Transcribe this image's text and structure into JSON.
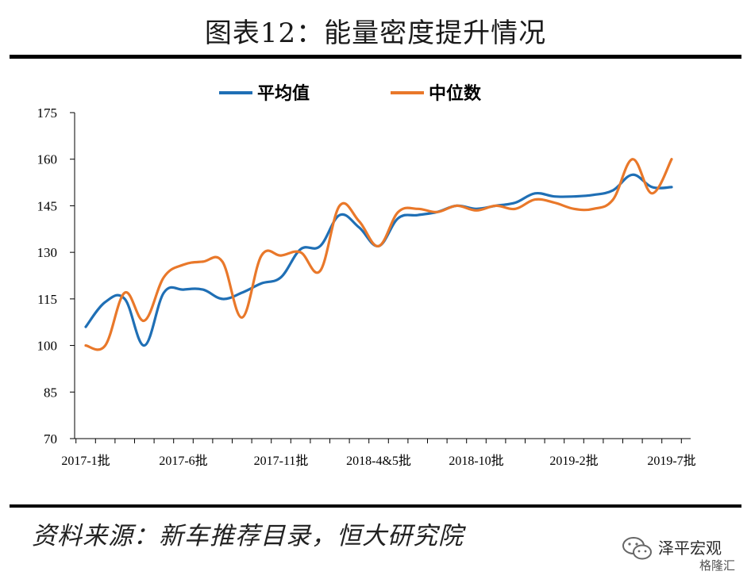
{
  "header": {
    "title": "图表12：能量密度提升情况"
  },
  "footer": {
    "source": "资料来源：新车推荐目录，恒大研究院"
  },
  "watermark": {
    "text": "泽平宏观",
    "sub": "格隆汇"
  },
  "chart_data": {
    "type": "line",
    "title": "图表12：能量密度提升情况",
    "ylim": [
      70,
      175
    ],
    "yticks": [
      70,
      85,
      100,
      115,
      130,
      145,
      160,
      175
    ],
    "x_tick_labels": [
      "2017-1批",
      "2017-6批",
      "2017-11批",
      "2018-4&5批",
      "2018-10批",
      "2019-2批",
      "2019-7批"
    ],
    "x_tick_label_index": [
      0,
      5,
      10,
      15,
      20,
      25,
      30
    ],
    "x_count": 31,
    "legend_position": "top-center",
    "grid": false,
    "series": [
      {
        "name": "平均值",
        "color": "#1f6fb5",
        "values": [
          106,
          114,
          115,
          100,
          117,
          118,
          118,
          115,
          117,
          120,
          122,
          131,
          132,
          142,
          138,
          132,
          141,
          142,
          143,
          145,
          144,
          145,
          146,
          149,
          148,
          148,
          148.5,
          150,
          155,
          151,
          151
        ]
      },
      {
        "name": "中位数",
        "color": "#e9782a",
        "values": [
          100,
          100,
          117,
          108,
          122,
          126,
          127,
          127,
          109,
          129,
          129,
          130,
          124,
          145,
          140,
          132,
          143,
          144,
          143,
          145,
          143.5,
          145,
          144,
          147,
          146,
          144,
          144,
          147,
          160,
          149,
          160
        ]
      }
    ]
  }
}
